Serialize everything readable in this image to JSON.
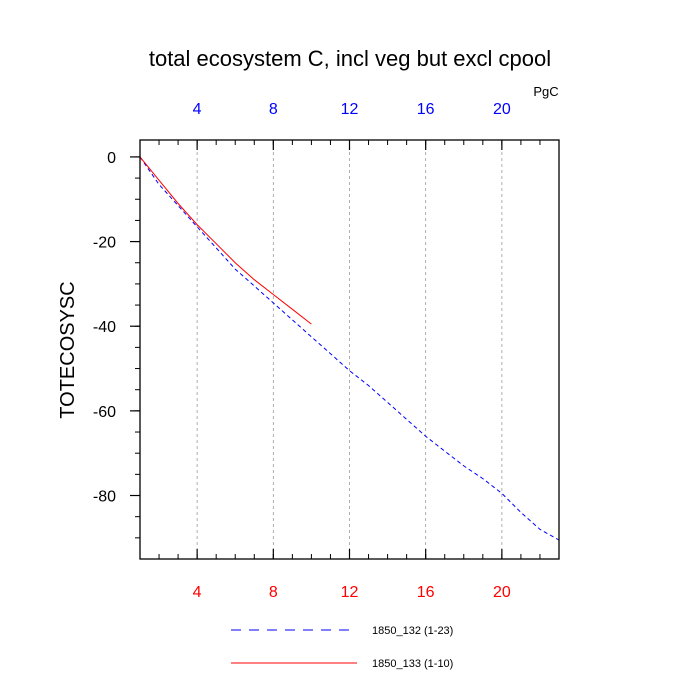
{
  "chart_data": {
    "type": "line",
    "title": "total ecosystem C, incl veg but excl cpool",
    "ylabel": "TOTECOSYSC",
    "units": "PgC",
    "xlim": [
      1,
      23
    ],
    "ylim": [
      -95,
      4
    ],
    "x_ticks": [
      4,
      8,
      12,
      16,
      20
    ],
    "y_ticks": [
      0,
      -20,
      -40,
      -60,
      -80
    ],
    "colors": {
      "axis": "#000000",
      "bottom_ticks": "#ff0000",
      "top_ticks": "#0000ff",
      "grid": "#9a9a9a"
    },
    "series": [
      {
        "name": "1850_132 (1-23)",
        "color": "#0000ff",
        "dash": "dashed",
        "x": [
          1,
          2,
          3,
          4,
          5,
          6,
          7,
          8,
          9,
          10,
          11,
          12,
          13,
          14,
          15,
          16,
          17,
          18,
          19,
          20,
          21,
          22,
          23
        ],
        "y": [
          0,
          -6.5,
          -11.5,
          -16.5,
          -21.5,
          -26.5,
          -30.5,
          -34.5,
          -38.5,
          -42.5,
          -46.5,
          -50.5,
          -54.0,
          -58.0,
          -62.0,
          -66.0,
          -69.5,
          -73.0,
          -76.0,
          -79.5,
          -84.0,
          -88.0,
          -90.5
        ]
      },
      {
        "name": "1850_133 (1-10)",
        "color": "#ff0000",
        "dash": "solid",
        "x": [
          1,
          2,
          3,
          4,
          5,
          6,
          7,
          8,
          9,
          10
        ],
        "y": [
          0,
          -5.5,
          -11.0,
          -16.0,
          -20.5,
          -25.0,
          -29.0,
          -32.5,
          -36.0,
          -39.5
        ]
      }
    ]
  }
}
